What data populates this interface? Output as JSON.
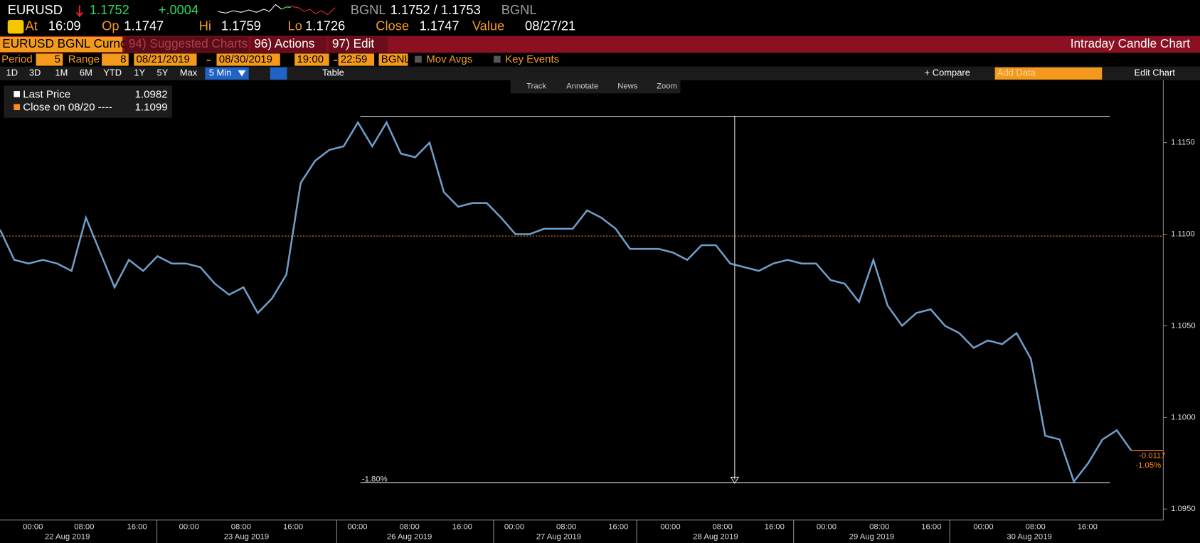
{
  "header": {
    "ticker": "EURUSD",
    "last": "1.1752",
    "change": "+.0004",
    "source": "BGNL",
    "bid_ask": "1.1752 / 1.1753",
    "source2": "BGNL",
    "stats": [
      {
        "label": "At",
        "value": "16:09"
      },
      {
        "label": "Op",
        "value": "1.1747"
      },
      {
        "label": "Hi",
        "value": "1.1759"
      },
      {
        "label": "Lo",
        "value": "1.1726"
      },
      {
        "label": "Close",
        "value": "1.1747"
      },
      {
        "label": "Value",
        "value": "08/27/21"
      }
    ]
  },
  "menu": {
    "security": "EURUSD BGNL Curncy",
    "items": [
      "94) Suggested Charts",
      "96) Actions",
      "97) Edit"
    ],
    "chart_name": "Intraday Candle Chart"
  },
  "settings": {
    "period_label": "Period",
    "period": "5",
    "range_label": "Range",
    "range": "8",
    "start": "08/21/2019",
    "end": "08/30/2019",
    "from": "19:00",
    "to": "22:59",
    "source": "BGNL",
    "options": [
      "Mov Avgs",
      "Key Events"
    ]
  },
  "toolbar": {
    "ranges": [
      "1D",
      "3D",
      "1M",
      "6M",
      "YTD",
      "1Y",
      "5Y",
      "Max"
    ],
    "interval": "5 Min",
    "table": "Table",
    "compare": "+ Compare",
    "add_data": "Add Data",
    "edit_chart": "Edit Chart",
    "tools": [
      "Track",
      "Annotate",
      "News",
      "Zoom"
    ]
  },
  "chart_data": {
    "type": "line",
    "series": [
      {
        "name": "Last Price",
        "color": "#5aa6ec",
        "last": 1.0982,
        "values": [
          1.11025,
          1.1086,
          1.1084,
          1.1086,
          1.1084,
          1.108,
          1.1109,
          1.109,
          1.1071,
          1.1086,
          1.108,
          1.1088,
          1.1084,
          1.1084,
          1.1082,
          1.1073,
          1.1067,
          1.1071,
          1.1057,
          1.1065,
          1.1078,
          1.1128,
          1.114,
          1.1146,
          1.1148,
          1.1161,
          1.1148,
          1.1161,
          1.1144,
          1.1142,
          1.115,
          1.1123,
          1.1115,
          1.1117,
          1.1117,
          1.1109,
          1.11,
          1.11,
          1.1103,
          1.1103,
          1.1103,
          1.1113,
          1.1109,
          1.1103,
          1.1092,
          1.1092,
          1.1092,
          1.109,
          1.1086,
          1.1094,
          1.1094,
          1.1084,
          1.1082,
          1.108,
          1.1084,
          1.1086,
          1.1084,
          1.1084,
          1.1075,
          1.1073,
          1.1063,
          1.1086,
          1.1061,
          1.105,
          1.1057,
          1.1059,
          1.105,
          1.1046,
          1.1038,
          1.1042,
          1.104,
          1.1046,
          1.1032,
          1.099,
          1.0988,
          1.0965,
          1.0975,
          1.0988,
          1.0993,
          1.0982
        ]
      }
    ],
    "reference": {
      "name": "Close on 08/20 ----",
      "value": 1.1099,
      "color": "#ff8c1a"
    },
    "annotations": {
      "range_change": "-1.80%",
      "change": "-0.0117",
      "change_pct": "-1.05%"
    },
    "ylim": [
      1.0944,
      1.1184
    ],
    "yticks": [
      {
        "value": 1.095,
        "label": "1.0950"
      },
      {
        "value": 1.1,
        "label": "1.1000"
      },
      {
        "value": 1.105,
        "label": "1.1050"
      },
      {
        "value": 1.11,
        "label": "1.1100"
      },
      {
        "value": 1.115,
        "label": "1.1150"
      }
    ],
    "x_axis": [
      {
        "day": "22 Aug 2019",
        "times": [
          "00:00",
          "08:00",
          "16:00"
        ]
      },
      {
        "day": "23 Aug 2019",
        "times": [
          "00:00",
          "08:00",
          "16:00"
        ]
      },
      {
        "day": "26 Aug 2019",
        "times": [
          "00:00",
          "08:00",
          "16:00"
        ]
      },
      {
        "day": "27 Aug 2019",
        "times": [
          "00:00",
          "08:00",
          "16:00"
        ]
      },
      {
        "day": "28 Aug 2019",
        "times": [
          "00:00",
          "08:00",
          "16:00"
        ]
      },
      {
        "day": "29 Aug 2019",
        "times": [
          "00:00",
          "08:00",
          "16:00"
        ]
      },
      {
        "day": "30 Aug 2019",
        "times": [
          "00:00",
          "08:00",
          "16:00"
        ]
      }
    ]
  }
}
